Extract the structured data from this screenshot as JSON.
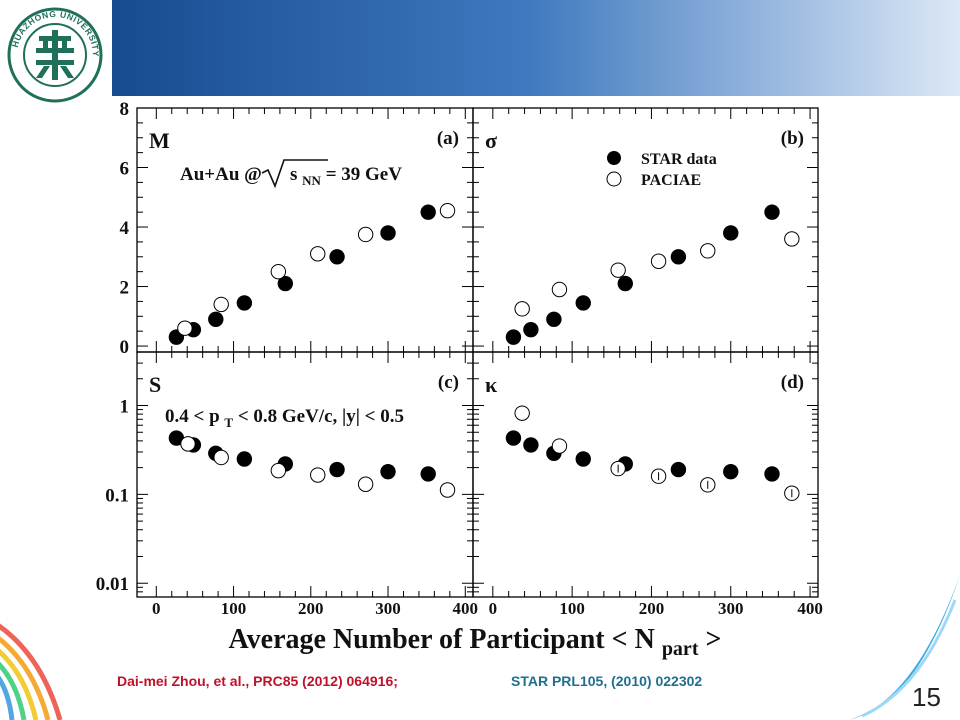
{
  "header": {
    "logo_text": "HUAZHONG UNIVERSITY",
    "colors": {
      "banner_dark": "#0d3f84",
      "banner_mid": "#3f79bf",
      "banner_light": "#dce8f6",
      "logo_green": "#1f6f5a"
    }
  },
  "footer": {
    "reference_left": "Dai-mei Zhou, et al., PRC85 (2012) 064916;",
    "reference_right": "STAR PRL105, (2010) 022302",
    "page_number": "15"
  },
  "chart_data": {
    "type": "scatter",
    "xlabel_main": "Average Number of Participant < N",
    "xlabel_sub": "part",
    "xlabel_end": " >",
    "x_ticks": [
      "0",
      "100",
      "200",
      "300",
      "400"
    ],
    "xlim": [
      -25,
      410
    ],
    "legend": [
      {
        "label": "STAR data",
        "marker": "filled-circle"
      },
      {
        "label": "PACIAE",
        "marker": "open-circle"
      }
    ],
    "legend_placement": "top-right of panel (b)",
    "annotations": {
      "system_prefix": "Au+Au @",
      "sqrt_s": "s",
      "sqrt_sub": "NN",
      "energy": " = 39 GeV",
      "cut_prefix": "0.4 < p",
      "cut_sub": "T",
      "cut_suffix": " < 0.8 GeV/c, |y| < 0.5"
    },
    "panels": [
      {
        "id": "a",
        "symbol": "M",
        "label": "(a)",
        "scale": "linear",
        "ylim": [
          -0.2,
          8
        ],
        "y_ticks": [
          "0",
          "2",
          "4",
          "6",
          "8"
        ],
        "series": [
          {
            "name": "STAR data",
            "x": [
              26,
              48,
              77,
              114,
              167,
              234,
              300,
              352
            ],
            "y": [
              0.3,
              0.55,
              0.9,
              1.45,
              2.1,
              3.0,
              3.8,
              4.5
            ]
          },
          {
            "name": "PACIAE",
            "x": [
              37,
              84,
              158,
              209,
              271,
              377
            ],
            "y": [
              0.6,
              1.4,
              2.5,
              3.1,
              3.75,
              4.55
            ]
          }
        ]
      },
      {
        "id": "b",
        "symbol": "σ",
        "label": "(b)",
        "scale": "linear",
        "ylim": [
          -0.2,
          8
        ],
        "y_ticks": [],
        "series": [
          {
            "name": "STAR data",
            "x": [
              26,
              48,
              77,
              114,
              167,
              234,
              300,
              352
            ],
            "y": [
              0.3,
              0.55,
              0.9,
              1.45,
              2.1,
              3.0,
              3.8,
              4.5
            ]
          },
          {
            "name": "PACIAE",
            "x": [
              37,
              84,
              158,
              209,
              271,
              377
            ],
            "y": [
              1.25,
              1.9,
              2.55,
              2.85,
              3.2,
              3.6
            ]
          }
        ]
      },
      {
        "id": "c",
        "symbol": "S",
        "label": "(c)",
        "scale": "log",
        "ylim": [
          0.007,
          4
        ],
        "y_ticks": [
          "0.01",
          "0.1",
          "1"
        ],
        "series": [
          {
            "name": "STAR data",
            "x": [
              26,
              48,
              77,
              114,
              167,
              234,
              300,
              352
            ],
            "y": [
              0.43,
              0.36,
              0.29,
              0.25,
              0.22,
              0.19,
              0.18,
              0.17
            ]
          },
          {
            "name": "PACIAE",
            "x": [
              41,
              84,
              158,
              209,
              271,
              377
            ],
            "y": [
              0.37,
              0.26,
              0.185,
              0.165,
              0.13,
              0.112
            ]
          }
        ]
      },
      {
        "id": "d",
        "symbol": "κ",
        "label": "(d)",
        "scale": "log",
        "ylim": [
          0.007,
          4
        ],
        "y_ticks": [],
        "series": [
          {
            "name": "STAR data",
            "x": [
              26,
              48,
              77,
              114,
              167,
              234,
              300,
              352
            ],
            "y": [
              0.43,
              0.36,
              0.29,
              0.25,
              0.22,
              0.19,
              0.18,
              0.17
            ]
          },
          {
            "name": "PACIAE",
            "x": [
              37,
              84,
              158,
              209,
              271,
              377
            ],
            "y": [
              0.82,
              0.35,
              0.195,
              0.16,
              0.128,
              0.103
            ]
          }
        ]
      }
    ]
  }
}
